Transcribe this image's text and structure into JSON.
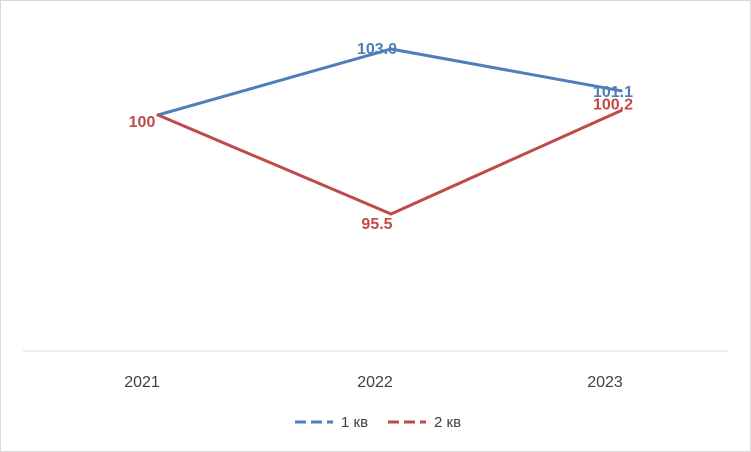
{
  "chart_data": {
    "type": "line",
    "categories": [
      "2021",
      "2022",
      "2023"
    ],
    "series": [
      {
        "name": "1 кв",
        "values": [
          100,
          103.0,
          101.1
        ],
        "labels": [
          "",
          "103.0",
          "101.1"
        ],
        "color": "#4e7fbb"
      },
      {
        "name": "2 кв",
        "values": [
          100,
          95.5,
          100.2
        ],
        "labels": [
          "100",
          "95.5",
          "100.2"
        ],
        "color": "#be4b48"
      }
    ],
    "axis_color": "#d9d9d9",
    "legend_position": "bottom",
    "grid": false
  }
}
